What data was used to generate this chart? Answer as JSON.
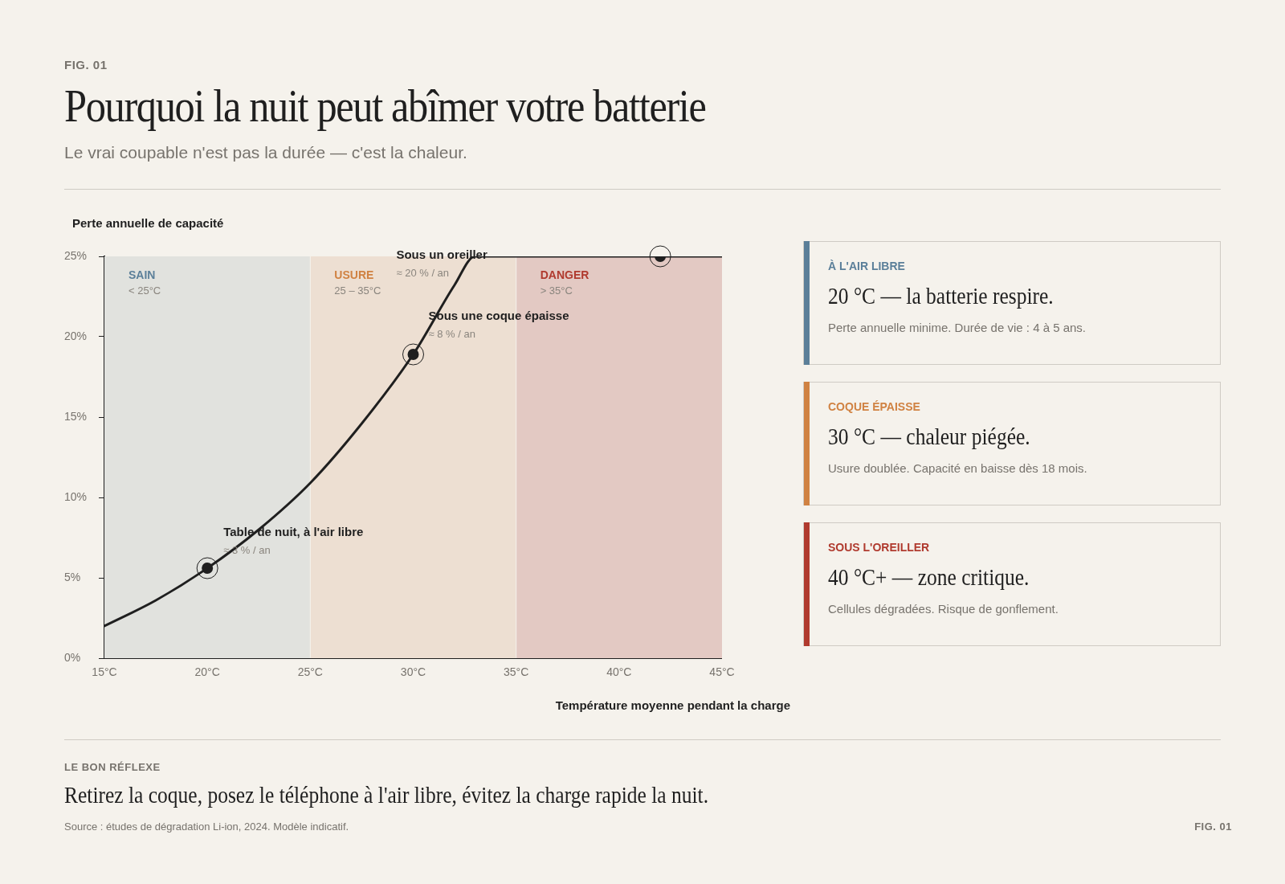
{
  "chart_data": {
    "type": "line",
    "title": "Pourquoi la nuit peut abîmer votre batterie",
    "subtitle": "Le vrai coupable n'est pas la durée — c'est la chaleur.",
    "xlabel": "Température moyenne pendant la charge",
    "ylabel": "Perte annuelle de capacité",
    "xlim": [
      15,
      45
    ],
    "xticks": [
      {
        "value": 15,
        "label": "15°C"
      },
      {
        "value": 20,
        "label": "20°C"
      },
      {
        "value": 25,
        "label": "25°C"
      },
      {
        "value": 30,
        "label": "30°C"
      },
      {
        "value": 35,
        "label": "35°C"
      },
      {
        "value": 40,
        "label": "40°C"
      },
      {
        "value": 45,
        "label": "45°C"
      }
    ],
    "ylim": [
      0,
      25
    ],
    "yticks": [
      {
        "value": 0,
        "label": "0%"
      },
      {
        "value": 5,
        "label": "5%"
      },
      {
        "value": 10,
        "label": "10%"
      },
      {
        "value": 15,
        "label": "15%"
      },
      {
        "value": 20,
        "label": "20%"
      },
      {
        "value": 25,
        "label": "25%"
      }
    ],
    "grid": false,
    "legend": false,
    "series": [
      {
        "type": "line",
        "color": "#1f1f1f",
        "marker": "none",
        "x": [
          15,
          17.5,
          20,
          22.5,
          25,
          27.5,
          30,
          32,
          33,
          45
        ],
        "values": [
          2.0,
          3.6,
          5.6,
          8.0,
          10.9,
          14.6,
          18.9,
          23.2,
          25,
          25
        ]
      },
      {
        "type": "scatter",
        "color": "#1f1f1f",
        "marker": "circle",
        "x": [
          20,
          30,
          42
        ],
        "values": [
          5.6,
          18.9,
          25
        ]
      }
    ],
    "bands": [
      {
        "axis": "x",
        "from": 15,
        "to": 25,
        "label": "SAIN",
        "color": "#e1e2de"
      },
      {
        "axis": "x",
        "from": 25,
        "to": 35,
        "label": "USURE",
        "color": "#eddfd2"
      },
      {
        "axis": "x",
        "from": 35,
        "to": 45,
        "label": "DANGER",
        "color": "#e3c9c3"
      }
    ],
    "annotations": [
      "< 25°C",
      "25 – 35°C",
      "> 35°C",
      {
        "text": "Table de nuit, à l'air libre",
        "x": 20,
        "y": 5.6
      },
      {
        "text": "≈ 3 % / an",
        "x": 20,
        "y": 5.6
      },
      {
        "text": "Sous une coque épaisse",
        "x": 30,
        "y": 18.9
      },
      {
        "text": "≈ 8 % / an",
        "x": 30,
        "y": 18.9
      },
      {
        "text": "Sous un oreiller",
        "x": 33,
        "y": 25
      },
      {
        "text": "≈ 20 % / an",
        "x": 33,
        "y": 25
      },
      "FIG. 01",
      "À L'AIR LIBRE",
      "20 °C — la batterie respire.",
      "Perte annuelle minime. Durée de vie : 4 à 5 ans.",
      "COQUE ÉPAISSE",
      "30 °C — chaleur piégée.",
      "Usure doublée. Capacité en baisse dès 18 mois.",
      "SOUS L'OREILLER",
      "40 °C+ — zone critique.",
      "Cellules dégradées. Risque de gonflement.",
      "LE BON RÉFLEXE",
      "Retirez la coque, posez le téléphone à l'air libre, évitez la charge rapide la nuit.",
      "Source : études de dégradation Li-ion, 2024. Modèle indicatif.",
      "FIG. 01"
    ]
  }
}
